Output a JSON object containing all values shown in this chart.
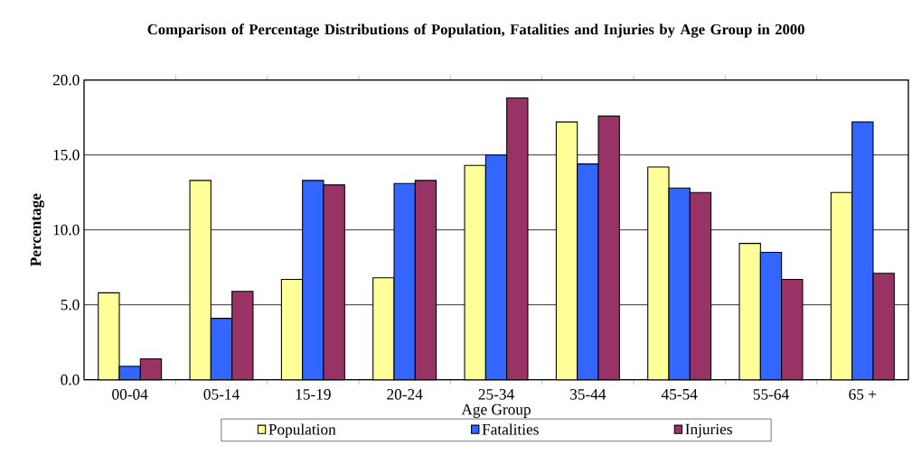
{
  "chart_data": {
    "type": "bar",
    "title": "Comparison of Percentage Distributions of Population, Fatalities and Injuries by Age Group in 2000",
    "xlabel": "Age Group",
    "ylabel": "Percentage",
    "categories": [
      "00-04",
      "05-14",
      "15-19",
      "20-24",
      "25-34",
      "35-44",
      "45-54",
      "55-64",
      "65 +"
    ],
    "series": [
      {
        "name": "Population",
        "color": "#ffff99",
        "values": [
          5.8,
          13.3,
          6.7,
          6.8,
          14.3,
          17.2,
          14.2,
          9.1,
          12.5
        ]
      },
      {
        "name": "Fatalities",
        "color": "#3366ff",
        "values": [
          0.9,
          4.1,
          13.3,
          13.1,
          15.0,
          14.4,
          12.8,
          8.5,
          17.2
        ]
      },
      {
        "name": "Injuries",
        "color": "#993366",
        "values": [
          1.4,
          5.9,
          13.0,
          13.3,
          18.8,
          17.6,
          12.5,
          6.7,
          7.1
        ]
      }
    ],
    "ylim": [
      0,
      20
    ],
    "yticks": [
      {
        "value": 0,
        "label": "0.0"
      },
      {
        "value": 5,
        "label": "5.0"
      },
      {
        "value": 10,
        "label": "10.0"
      },
      {
        "value": 15,
        "label": "15.0"
      },
      {
        "value": 20,
        "label": "20.0"
      }
    ],
    "grid": "y",
    "legend": "bottom"
  }
}
